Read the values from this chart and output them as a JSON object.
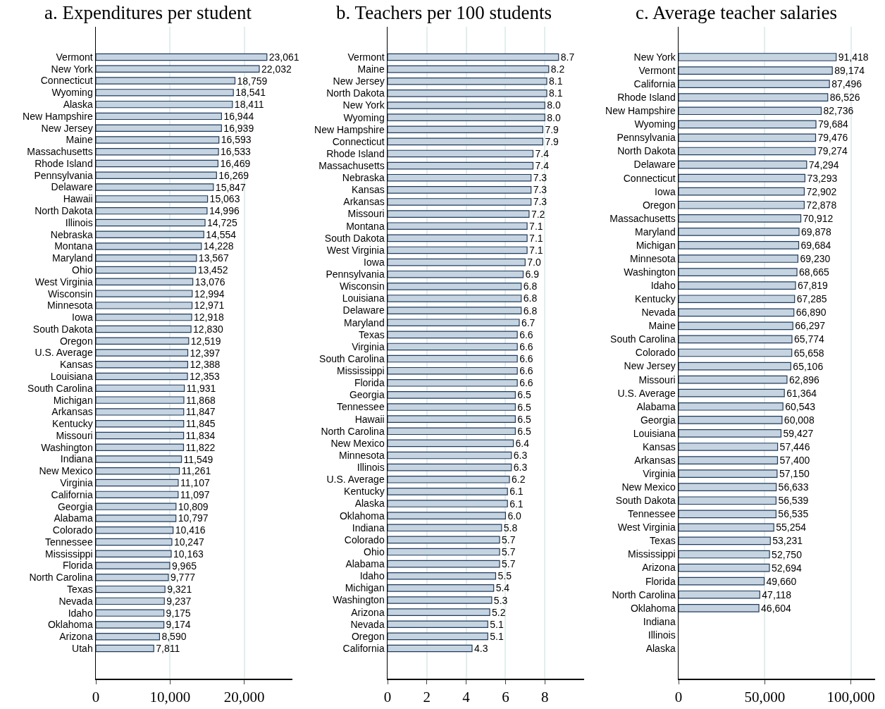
{
  "chart_data": [
    {
      "type": "bar",
      "orientation": "horizontal",
      "title": "a. Expenditures per student",
      "color": "#c6d4e1",
      "grid": "x",
      "xlim": [
        0,
        26500
      ],
      "xticks": [
        0,
        {
          "value": 10000,
          "label": "10,000"
        },
        {
          "value": 20000,
          "label": "20,000"
        }
      ],
      "categories": [
        "Vermont",
        "New York",
        "Connecticut",
        "Wyoming",
        "Alaska",
        "New Hampshire",
        "New Jersey",
        "Maine",
        "Massachusetts",
        "Rhode Island",
        "Pennsylvania",
        "Delaware",
        "Hawaii",
        "North Dakota",
        "Illinois",
        "Nebraska",
        "Montana",
        "Maryland",
        "Ohio",
        "West Virginia",
        "Wisconsin",
        "Minnesota",
        "Iowa",
        "South Dakota",
        "Oregon",
        "U.S. Average",
        "Kansas",
        "Louisiana",
        "South Carolina",
        "Michigan",
        "Arkansas",
        "Kentucky",
        "Missouri",
        "Washington",
        "Indiana",
        "New Mexico",
        "Virginia",
        "California",
        "Georgia",
        "Alabama",
        "Colorado",
        "Tennessee",
        "Mississippi",
        "Florida",
        "North Carolina",
        "Texas",
        "Nevada",
        "Idaho",
        "Oklahoma",
        "Arizona",
        "Utah"
      ],
      "values": [
        23061,
        22032,
        18759,
        18541,
        18411,
        16944,
        16939,
        16593,
        16533,
        16469,
        16269,
        15847,
        15063,
        14996,
        14725,
        14554,
        14228,
        13567,
        13452,
        13076,
        12994,
        12971,
        12918,
        12830,
        12519,
        12397,
        12388,
        12353,
        11931,
        11868,
        11847,
        11845,
        11834,
        11822,
        11549,
        11261,
        11107,
        11097,
        10809,
        10797,
        10416,
        10247,
        10163,
        9965,
        9777,
        9321,
        9237,
        9175,
        9174,
        8590,
        7811
      ],
      "value_labels": [
        "23,061",
        "22,032",
        "18,759",
        "18,541",
        "18,411",
        "16,944",
        "16,939",
        "16,593",
        "16,533",
        "16,469",
        "16,269",
        "15,847",
        "15,063",
        "14,996",
        "14,725",
        "14,554",
        "14,228",
        "13,567",
        "13,452",
        "13,076",
        "12,994",
        "12,971",
        "12,918",
        "12,830",
        "12,519",
        "12,397",
        "12,388",
        "12,353",
        "11,931",
        "11,868",
        "11,847",
        "11,845",
        "11,834",
        "11,822",
        "11,549",
        "11,261",
        "11,107",
        "11,097",
        "10,809",
        "10,797",
        "10,416",
        "10,247",
        "10,163",
        "9,965",
        "9,777",
        "9,321",
        "9,237",
        "9,175",
        "9,174",
        "8,590",
        "7,811"
      ]
    },
    {
      "type": "bar",
      "orientation": "horizontal",
      "title": "b. Teachers per 100 students",
      "color": "#c6d4e1",
      "grid": "x",
      "xlim": [
        0,
        10
      ],
      "xticks": [
        0,
        2,
        4,
        6,
        8
      ],
      "categories": [
        "Vermont",
        "Maine",
        "New Jersey",
        "North Dakota",
        "New York",
        "Wyoming",
        "New Hampshire",
        "Connecticut",
        "Rhode Island",
        "Massachusetts",
        "Nebraska",
        "Kansas",
        "Arkansas",
        "Missouri",
        "Montana",
        "South Dakota",
        "West Virginia",
        "Iowa",
        "Pennsylvania",
        "Wisconsin",
        "Louisiana",
        "Delaware",
        "Maryland",
        "Texas",
        "Virginia",
        "South Carolina",
        "Mississippi",
        "Florida",
        "Georgia",
        "Tennessee",
        "Hawaii",
        "North Carolina",
        "New Mexico",
        "Minnesota",
        "Illinois",
        "U.S. Average",
        "Kentucky",
        "Alaska",
        "Oklahoma",
        "Indiana",
        "Colorado",
        "Ohio",
        "Alabama",
        "Idaho",
        "Michigan",
        "Washington",
        "Arizona",
        "Nevada",
        "Oregon",
        "California"
      ],
      "values": [
        8.7,
        8.2,
        8.1,
        8.1,
        8.0,
        8.0,
        7.9,
        7.9,
        7.4,
        7.4,
        7.3,
        7.3,
        7.3,
        7.2,
        7.1,
        7.1,
        7.1,
        7.0,
        6.9,
        6.8,
        6.8,
        6.8,
        6.7,
        6.6,
        6.6,
        6.6,
        6.6,
        6.6,
        6.5,
        6.5,
        6.5,
        6.5,
        6.4,
        6.3,
        6.3,
        6.2,
        6.1,
        6.1,
        6.0,
        5.8,
        5.7,
        5.7,
        5.7,
        5.5,
        5.4,
        5.3,
        5.2,
        5.1,
        5.1,
        4.3
      ],
      "value_labels": [
        "8.7",
        "8.2",
        "8.1",
        "8.1",
        "8.0",
        "8.0",
        "7.9",
        "7.9",
        "7.4",
        "7.4",
        "7.3",
        "7.3",
        "7.3",
        "7.2",
        "7.1",
        "7.1",
        "7.1",
        "7.0",
        "6.9",
        "6.8",
        "6.8",
        "6.8",
        "6.7",
        "6.6",
        "6.6",
        "6.6",
        "6.6",
        "6.6",
        "6.5",
        "6.5",
        "6.5",
        "6.5",
        "6.4",
        "6.3",
        "6.3",
        "6.2",
        "6.1",
        "6.1",
        "6.0",
        "5.8",
        "5.7",
        "5.7",
        "5.7",
        "5.5",
        "5.4",
        "5.3",
        "5.2",
        "5.1",
        "5.1",
        "4.3"
      ]
    },
    {
      "type": "bar",
      "orientation": "horizontal",
      "title": "c. Average teacher salaries",
      "color": "#c6d4e1",
      "grid": "x",
      "xlim": [
        0,
        114000
      ],
      "xticks": [
        0,
        {
          "value": 50000,
          "label": "50,000"
        },
        {
          "value": 100000,
          "label": "100,000"
        }
      ],
      "categories": [
        "New York",
        "Vermont",
        "California",
        "Rhode Island",
        "New Hampshire",
        "Wyoming",
        "Pennsylvania",
        "North Dakota",
        "Delaware",
        "Connecticut",
        "Iowa",
        "Oregon",
        "Massachusetts",
        "Maryland",
        "Michigan",
        "Minnesota",
        "Washington",
        "Idaho",
        "Kentucky",
        "Nevada",
        "Maine",
        "South Carolina",
        "Colorado",
        "New Jersey",
        "Missouri",
        "U.S. Average",
        "Alabama",
        "Georgia",
        "Louisiana",
        "Kansas",
        "Arkansas",
        "Virginia",
        "New Mexico",
        "South Dakota",
        "Tennessee",
        "West Virginia",
        "Texas",
        "Mississippi",
        "Arizona",
        "Florida",
        "North Carolina",
        "Oklahoma",
        "Indiana",
        "Illinois",
        "Alaska"
      ],
      "values": [
        91418,
        89174,
        87496,
        86526,
        82736,
        79684,
        79476,
        79274,
        74294,
        73293,
        72902,
        72878,
        70912,
        69878,
        69684,
        69230,
        68665,
        67819,
        67285,
        66890,
        66297,
        65774,
        65658,
        65106,
        62896,
        61364,
        60543,
        60008,
        59427,
        57446,
        57400,
        57150,
        56633,
        56539,
        56535,
        55254,
        53231,
        52750,
        52694,
        49660,
        47118,
        46604,
        null,
        null,
        null
      ],
      "value_labels": [
        "91,418",
        "89,174",
        "87,496",
        "86,526",
        "82,736",
        "79,684",
        "79,476",
        "79,274",
        "74,294",
        "73,293",
        "72,902",
        "72,878",
        "70,912",
        "69,878",
        "69,684",
        "69,230",
        "68,665",
        "67,819",
        "67,285",
        "66,890",
        "66,297",
        "65,774",
        "65,658",
        "65,106",
        "62,896",
        "61,364",
        "60,543",
        "60,008",
        "59,427",
        "57,446",
        "57,400",
        "57,150",
        "56,633",
        "56,539",
        "56,535",
        "55,254",
        "53,231",
        "52,750",
        "52,694",
        "49,660",
        "47,118",
        "46,604",
        null,
        null,
        null
      ]
    }
  ]
}
